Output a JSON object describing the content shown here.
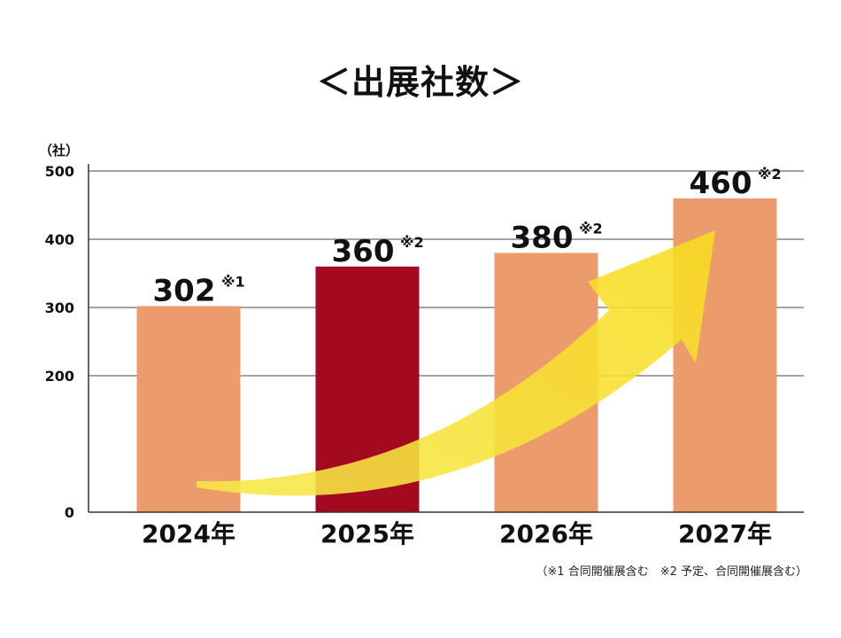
{
  "chart_data": {
    "type": "bar",
    "title": "＜出展社数＞",
    "ylabel": "（社）",
    "ylim": [
      0,
      500
    ],
    "yticks": [
      "0",
      "200",
      "300",
      "400",
      "500"
    ],
    "categories": [
      "2024年",
      "2025年",
      "2026年",
      "2027年"
    ],
    "values": [
      302,
      360,
      380,
      460
    ],
    "value_labels": [
      "302",
      "360",
      "380",
      "460"
    ],
    "value_notes": [
      "※1",
      "※2",
      "※2",
      "※2"
    ],
    "colors": [
      "#ec9b6c",
      "#a30a1f",
      "#ec9b6c",
      "#ec9b6c"
    ],
    "grid": true,
    "annotations": [
      "upward trend arrow"
    ],
    "footnote": "（※1 合同開催展含む　※2 予定、合同開催展含む）"
  }
}
